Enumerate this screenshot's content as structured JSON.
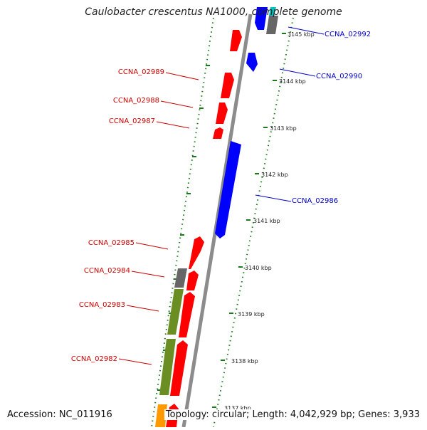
{
  "title": "Caulobacter crescentus NA1000, complete genome",
  "footer": {
    "accession": "Accession: NC_011916",
    "topology": "Topology: circular; Length: 4,042,929 bp; Genes: 3,933"
  },
  "ruler_ticks": [
    "3145 kbp",
    "3144 kbp",
    "3143 kbp",
    "3142 kbp",
    "3141 kbp",
    "3140 kbp",
    "3139 kbp",
    "3138 kbp",
    "3137 kbp"
  ],
  "gene_labels": {
    "left": [
      "CCNA_02989",
      "CCNA_02988",
      "CCNA_02987",
      "CCNA_02985",
      "CCNA_02984",
      "CCNA_02983",
      "CCNA_02982"
    ],
    "right": [
      "CCNA_02992",
      "CCNA_02990",
      "CCNA_02986"
    ]
  },
  "colors": {
    "forward_gene": "#ff0000",
    "reverse_gene": "#0000ff",
    "label_forward": "#cc0000",
    "label_reverse": "#0000cc",
    "backbone": "#8c8c8c",
    "gc_dots": "#1a7a1a",
    "olive_feature": "#6b8e23",
    "gray_feature": "#666666",
    "orange_feature": "#ff9900",
    "cyan_feature": "#00c0c0"
  }
}
